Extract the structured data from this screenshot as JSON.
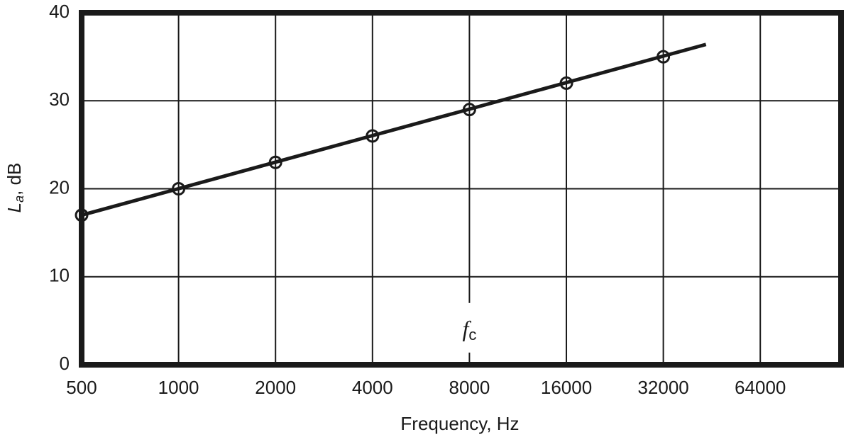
{
  "chart_data": {
    "type": "line",
    "xlabel": "Frequency, Hz",
    "ylabel": {
      "main": "L",
      "sub": "a",
      "rest": ", dB"
    },
    "x_scale": "log2",
    "xlim": [
      500,
      114000
    ],
    "xticks": [
      500,
      1000,
      2000,
      4000,
      8000,
      16000,
      32000,
      64000
    ],
    "ylim": [
      0,
      40
    ],
    "yticks": [
      0,
      10,
      20,
      30,
      40
    ],
    "grid": true,
    "series": [
      {
        "name": null,
        "style": "markers",
        "color": "#1a1a1a",
        "x": [
          500,
          1000,
          2000,
          4000,
          8000,
          16000,
          32000
        ],
        "values": [
          17,
          20,
          23,
          26,
          29,
          32,
          35
        ]
      },
      {
        "name": null,
        "style": "line",
        "color": "#1a1a1a",
        "x": [
          500,
          43400
        ],
        "values": [
          17,
          36.4
        ]
      }
    ],
    "annotation": {
      "x": 8000,
      "y": 3.8,
      "label": "f",
      "subscript": "c"
    }
  }
}
